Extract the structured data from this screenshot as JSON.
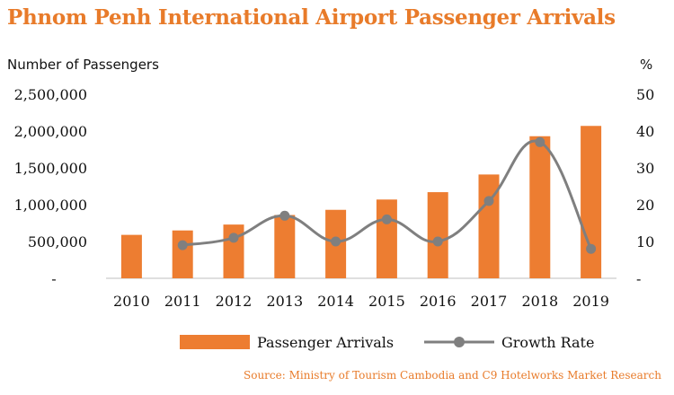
{
  "title": "Phnom Penh International Airport Passenger Arrivals",
  "source": "Source: Ministry of Tourism Cambodia and C9 Hotelworks Market Research",
  "chart_data": {
    "type": "bar+line",
    "categories": [
      "2010",
      "2011",
      "2012",
      "2013",
      "2014",
      "2015",
      "2016",
      "2017",
      "2018",
      "2019"
    ],
    "series": [
      {
        "name": "Passenger Arrivals",
        "type": "bar",
        "axis": "left",
        "color": "#ed7d31",
        "values": [
          590000,
          650000,
          730000,
          860000,
          930000,
          1070000,
          1170000,
          1410000,
          1930000,
          2070000
        ]
      },
      {
        "name": "Growth Rate",
        "type": "line",
        "axis": "right",
        "color": "#7f7f7f",
        "values": [
          null,
          9,
          11,
          17,
          10,
          16,
          10,
          21,
          37,
          8
        ]
      }
    ],
    "ylabel_left": "Number of Passengers",
    "ylabel_right": "%",
    "ylim_left": [
      0,
      2500000
    ],
    "ylim_right": [
      0,
      50
    ],
    "yticks_left": [
      "-",
      "500,000",
      "1,000,000",
      "1,500,000",
      "2,000,000",
      "2,500,000"
    ],
    "yticks_right": [
      "-",
      "10",
      "20",
      "30",
      "40",
      "50"
    ],
    "grid": false,
    "legend_position": "bottom"
  }
}
